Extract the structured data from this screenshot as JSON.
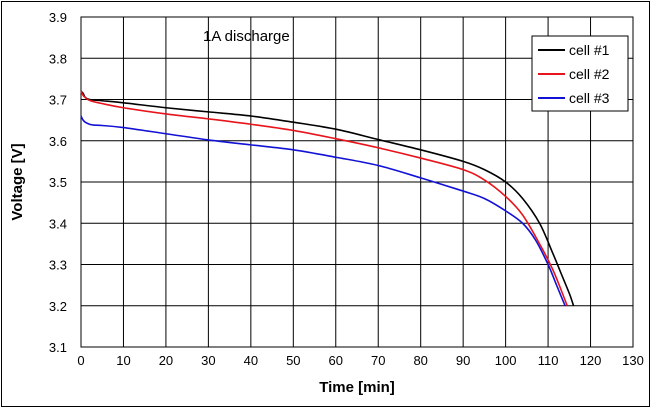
{
  "chart_data": {
    "type": "line",
    "title": "",
    "annotation": "1A discharge",
    "xlabel": "Time [min]",
    "ylabel": "Voltage [V]",
    "xlim": [
      0,
      130
    ],
    "ylim": [
      3.1,
      3.9
    ],
    "xticks": [
      "0",
      "10",
      "20",
      "30",
      "40",
      "50",
      "60",
      "70",
      "80",
      "90",
      "100",
      "110",
      "120",
      "130"
    ],
    "yticks": [
      "3.1",
      "3.2",
      "3.3",
      "3.4",
      "3.5",
      "3.6",
      "3.7",
      "3.8",
      "3.9"
    ],
    "grid": true,
    "legend_position": "top-right",
    "series": [
      {
        "name": "cell #1",
        "color": "#000000",
        "x": [
          0,
          0.5,
          1,
          2,
          5,
          10,
          20,
          30,
          40,
          50,
          60,
          70,
          80,
          90,
          95,
          100,
          104,
          108,
          111,
          113,
          115,
          116
        ],
        "y": [
          3.72,
          3.715,
          3.705,
          3.7,
          3.697,
          3.692,
          3.68,
          3.67,
          3.66,
          3.645,
          3.628,
          3.603,
          3.578,
          3.55,
          3.53,
          3.5,
          3.46,
          3.4,
          3.33,
          3.28,
          3.23,
          3.2
        ]
      },
      {
        "name": "cell #2",
        "color": "#e8141c",
        "x": [
          0,
          0.5,
          1,
          2,
          5,
          10,
          20,
          30,
          40,
          50,
          60,
          70,
          80,
          90,
          95,
          100,
          104,
          108,
          111,
          113,
          114.5
        ],
        "y": [
          3.72,
          3.71,
          3.705,
          3.698,
          3.69,
          3.68,
          3.665,
          3.653,
          3.64,
          3.625,
          3.605,
          3.583,
          3.558,
          3.53,
          3.505,
          3.465,
          3.42,
          3.35,
          3.29,
          3.24,
          3.2
        ]
      },
      {
        "name": "cell #3",
        "color": "#1212d6",
        "x": [
          0,
          0.5,
          1,
          2,
          3,
          5,
          10,
          20,
          30,
          40,
          50,
          60,
          70,
          80,
          90,
          95,
          100,
          104,
          107,
          110,
          112,
          114
        ],
        "y": [
          3.66,
          3.65,
          3.645,
          3.64,
          3.638,
          3.637,
          3.632,
          3.617,
          3.602,
          3.59,
          3.578,
          3.56,
          3.54,
          3.51,
          3.478,
          3.46,
          3.43,
          3.4,
          3.36,
          3.3,
          3.25,
          3.2
        ]
      }
    ]
  }
}
